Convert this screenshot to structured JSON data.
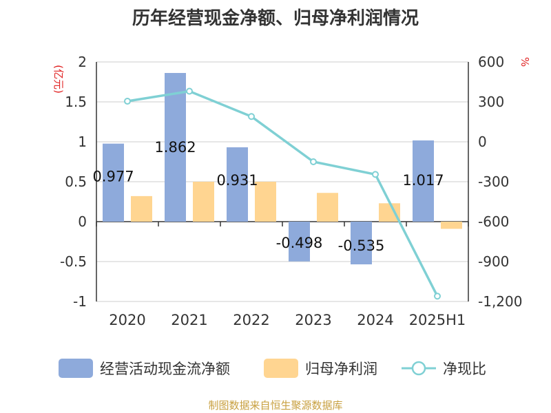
{
  "chart_data": {
    "type": "bar",
    "title": "历年经营现金净额、归母净利润情况",
    "categories": [
      "2020",
      "2021",
      "2022",
      "2023",
      "2024",
      "2025H1"
    ],
    "series": [
      {
        "name": "经营活动现金流净额",
        "axis": "left",
        "color": "#8eaadb",
        "values": [
          0.977,
          1.862,
          0.931,
          -0.498,
          -0.535,
          1.017
        ],
        "data_labels": [
          "0.977",
          "1.862",
          "0.931",
          "-0.498",
          "-0.535",
          "1.017"
        ]
      },
      {
        "name": "归母净利润",
        "axis": "left",
        "color": "#ffd591",
        "values": [
          0.32,
          0.5,
          0.5,
          0.36,
          0.23,
          -0.09
        ]
      },
      {
        "name": "净现比",
        "axis": "right",
        "type": "line",
        "color": "#7fd0d4",
        "values": [
          305,
          380,
          190,
          -150,
          -245,
          -1160
        ]
      }
    ],
    "y_left": {
      "label": "(亿元)",
      "range": [
        -1,
        2
      ],
      "ticks": [
        "-1",
        "-0.5",
        "0",
        "0.5",
        "1",
        "1.5",
        "2"
      ],
      "tick_values": [
        -1,
        -0.5,
        0,
        0.5,
        1,
        1.5,
        2
      ]
    },
    "y_right": {
      "label": "%",
      "range": [
        -1200,
        600
      ],
      "ticks": [
        "-1,200",
        "-900",
        "-600",
        "-300",
        "0",
        "300",
        "600"
      ],
      "tick_values": [
        -1200,
        -900,
        -600,
        -300,
        0,
        300,
        600
      ]
    },
    "grid": true,
    "legend_position": "bottom",
    "colors": {
      "axis_label": "#e02020",
      "grid": "#cccccc",
      "text": "#333333"
    }
  },
  "source": "制图数据来自恒生聚源数据库"
}
